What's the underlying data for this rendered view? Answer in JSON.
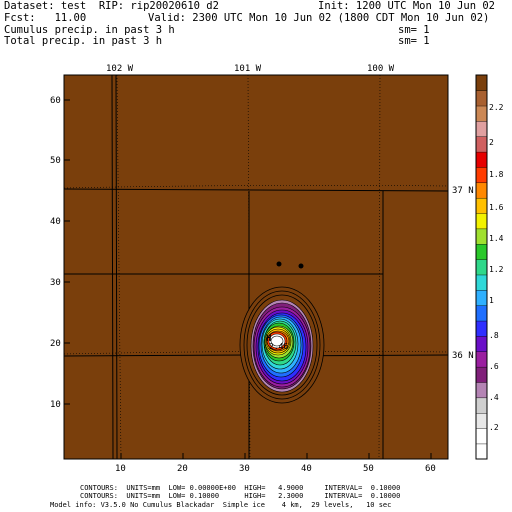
{
  "header": {
    "line1_left": "Dataset: test  RIP: rip20020610 d2",
    "line1_right": "Init: 1200 UTC Mon 10 Jun 02",
    "line2_left": "Fcst:   11.00",
    "line2_right": "Valid: 2300 UTC Mon 10 Jun 02 (1800 CDT Mon 10 Jun 02)",
    "line3_left": "Cumulus precip. in past 3 h",
    "line3_right": "sm= 1",
    "line4_left": "Total precip. in past 3 h",
    "line4_right": "sm= 1"
  },
  "map": {
    "lon_labels": [
      "102 W",
      "101 W",
      "100 W"
    ],
    "lat_labels": [
      "37 N",
      "36 N"
    ],
    "x_ticks": [
      "10",
      "20",
      "30",
      "40",
      "50",
      "60"
    ],
    "y_ticks": [
      "10",
      "20",
      "30",
      "40",
      "50",
      "60"
    ],
    "storm_label": "H",
    "storm_value": "2.46",
    "colors": {
      "background": "#7a3f0c",
      "boundary": "#000000"
    }
  },
  "colorbar": {
    "labels": [
      ".2",
      ".4",
      ".6",
      ".8",
      "1",
      "1.2",
      "1.4",
      "1.6",
      "1.8",
      "2",
      "2.2"
    ],
    "colors": [
      "#ffffff",
      "#ffffff",
      "#e8e8e8",
      "#cfcfcf",
      "#b484b4",
      "#80207a",
      "#9a1fa0",
      "#6a0fc8",
      "#2f2fff",
      "#1f6fff",
      "#2fb0ff",
      "#2fd8d8",
      "#2fd88a",
      "#2ac82a",
      "#a0e030",
      "#f2f200",
      "#ffc000",
      "#ff8800",
      "#ff3c00",
      "#e60000",
      "#d06060",
      "#e0a0a0",
      "#cc8855",
      "#a86030",
      "#7a3f0c"
    ]
  },
  "footer": {
    "line1": "CONTOURS:  UNITS=mm  LOW= 0.00000E+00  HIGH=   4.9000     INTERVAL=  0.10000",
    "line2": "CONTOURS:  UNITS=mm  LOW= 0.10000      HIGH=   2.3000     INTERVAL=  0.10000",
    "line3": "Model info: V3.5.0 No Cumulus Blackadar  Simple ice    4 km,  29 levels,   10 sec"
  }
}
